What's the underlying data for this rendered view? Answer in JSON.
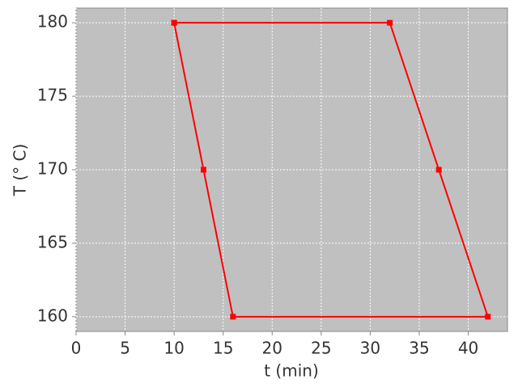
{
  "chart_data": {
    "type": "line",
    "xlabel": "t (min)",
    "ylabel": "T (° C)",
    "x": [
      10,
      13,
      16,
      42,
      37,
      32,
      10
    ],
    "values": [
      180,
      170,
      160,
      160,
      170,
      180,
      180
    ],
    "color": "#ff0000",
    "xlim": [
      0,
      44
    ],
    "ylim": [
      159,
      181
    ],
    "xticks": [
      0,
      5,
      10,
      15,
      20,
      25,
      30,
      35,
      40
    ],
    "yticks": [
      160,
      165,
      170,
      175,
      180
    ],
    "grid": true
  }
}
